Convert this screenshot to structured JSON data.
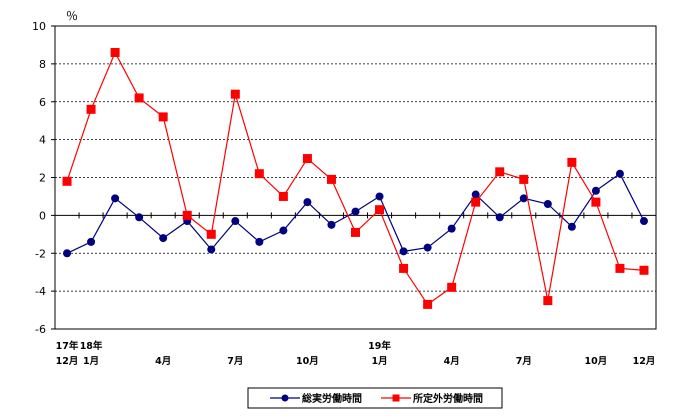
{
  "chart_data": {
    "type": "line",
    "unit_label": "％",
    "ylim": [
      -6,
      10
    ],
    "yticks": [
      10,
      8,
      6,
      4,
      2,
      0,
      -2,
      -4,
      -6
    ],
    "grid": "horizontal dashed at 2,4,6,8,-2,-4",
    "legend_position": "bottom-center",
    "x_count": 25,
    "x_tick_labels": [
      {
        "index": 0,
        "line1": "17年",
        "line2": "12月"
      },
      {
        "index": 1,
        "line1": "18年",
        "line2": "1月"
      },
      {
        "index": 4,
        "line1": "",
        "line2": "4月"
      },
      {
        "index": 7,
        "line1": "",
        "line2": "7月"
      },
      {
        "index": 10,
        "line1": "",
        "line2": "10月"
      },
      {
        "index": 13,
        "line1": "19年",
        "line2": "1月"
      },
      {
        "index": 16,
        "line1": "",
        "line2": "4月"
      },
      {
        "index": 19,
        "line1": "",
        "line2": "7月"
      },
      {
        "index": 22,
        "line1": "",
        "line2": "10月"
      },
      {
        "index": 24,
        "line1": "",
        "line2": "12月"
      }
    ],
    "series": [
      {
        "name": "総実労働時間",
        "color": "#000080",
        "marker": "circle",
        "values": [
          -2.0,
          -1.4,
          0.9,
          -0.1,
          -1.2,
          -0.3,
          -1.8,
          -0.3,
          -1.4,
          -0.8,
          0.7,
          -0.5,
          0.2,
          1.0,
          -1.9,
          -1.7,
          -0.7,
          1.1,
          -0.1,
          0.9,
          0.6,
          -0.6,
          1.3,
          2.2,
          -0.3
        ]
      },
      {
        "name": "所定外労働時間",
        "color": "#ff0000",
        "marker": "square",
        "values": [
          1.8,
          5.6,
          8.6,
          6.2,
          5.2,
          0.0,
          -1.0,
          6.4,
          2.2,
          1.0,
          3.0,
          1.9,
          -0.9,
          0.3,
          -2.8,
          -4.7,
          -3.8,
          0.7,
          2.3,
          1.9,
          -4.5,
          2.8,
          0.7,
          -2.8,
          -2.9
        ]
      }
    ]
  }
}
